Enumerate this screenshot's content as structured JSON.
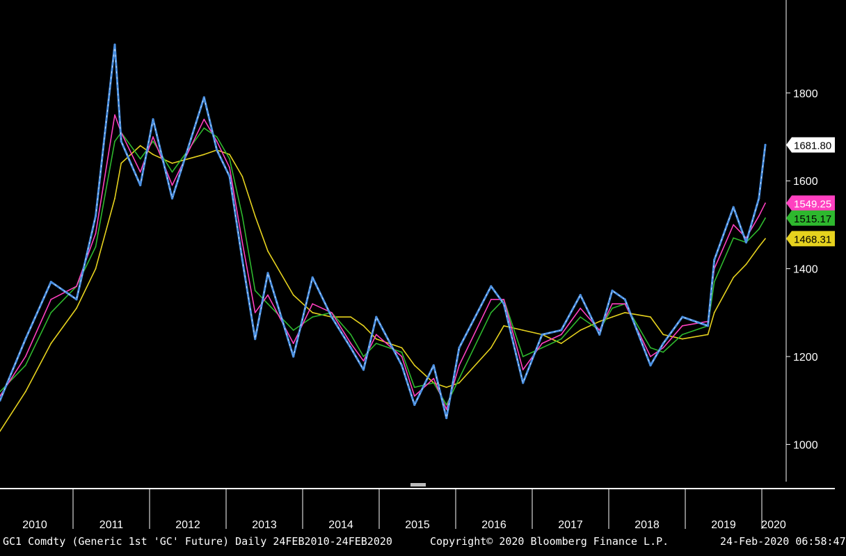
{
  "footer": {
    "left": "GC1 Comdty (Generic 1st 'GC' Future) Daily 24FEB2010-24FEB2020",
    "center": "Copyright© 2020 Bloomberg Finance L.P.",
    "right": "24-Feb-2020 06:58:47"
  },
  "colors": {
    "background": "#000000",
    "price": "#4a90e2",
    "price_highlight": "#ffffff",
    "ma_short": "#ff40c0",
    "ma_mid": "#2eb82e",
    "ma_long": "#e6d21e",
    "axis": "#ffffff"
  },
  "chart_data": {
    "type": "line",
    "x": [
      "2010-02",
      "2010-06",
      "2010-10",
      "2011-02",
      "2011-05",
      "2011-08",
      "2011-09",
      "2011-12",
      "2012-02",
      "2012-05",
      "2012-10",
      "2012-12",
      "2013-02",
      "2013-04",
      "2013-06",
      "2013-08",
      "2013-12",
      "2014-03",
      "2014-06",
      "2014-09",
      "2014-11",
      "2015-01",
      "2015-05",
      "2015-07",
      "2015-10",
      "2015-12",
      "2016-02",
      "2016-07",
      "2016-09",
      "2016-12",
      "2017-03",
      "2017-06",
      "2017-09",
      "2017-12",
      "2018-02",
      "2018-04",
      "2018-08",
      "2018-10",
      "2019-01",
      "2019-05",
      "2019-06",
      "2019-09",
      "2019-11",
      "2020-01",
      "2020-02"
    ],
    "series": [
      {
        "key": "price",
        "values": [
          1100,
          1240,
          1370,
          1330,
          1520,
          1910,
          1690,
          1590,
          1740,
          1560,
          1790,
          1670,
          1610,
          1420,
          1240,
          1390,
          1200,
          1380,
          1290,
          1220,
          1170,
          1290,
          1180,
          1090,
          1180,
          1060,
          1220,
          1360,
          1320,
          1140,
          1250,
          1260,
          1340,
          1250,
          1350,
          1330,
          1180,
          1230,
          1290,
          1270,
          1420,
          1540,
          1460,
          1560,
          1681.8
        ]
      },
      {
        "key": "ma_short",
        "values": [
          1110,
          1200,
          1330,
          1360,
          1480,
          1750,
          1710,
          1620,
          1700,
          1590,
          1740,
          1690,
          1630,
          1460,
          1300,
          1340,
          1230,
          1320,
          1300,
          1230,
          1190,
          1250,
          1200,
          1110,
          1150,
          1080,
          1180,
          1330,
          1330,
          1170,
          1230,
          1250,
          1310,
          1260,
          1320,
          1320,
          1200,
          1220,
          1270,
          1280,
          1400,
          1500,
          1470,
          1520,
          1549.25
        ]
      },
      {
        "key": "ma_mid",
        "values": [
          1120,
          1180,
          1300,
          1360,
          1450,
          1690,
          1710,
          1650,
          1690,
          1620,
          1720,
          1700,
          1650,
          1520,
          1350,
          1320,
          1260,
          1290,
          1300,
          1250,
          1200,
          1230,
          1210,
          1130,
          1140,
          1090,
          1150,
          1300,
          1330,
          1200,
          1220,
          1240,
          1290,
          1260,
          1310,
          1320,
          1220,
          1210,
          1250,
          1270,
          1370,
          1470,
          1460,
          1490,
          1515.17
        ]
      },
      {
        "key": "ma_long",
        "values": [
          1030,
          1120,
          1230,
          1310,
          1400,
          1560,
          1640,
          1680,
          1660,
          1640,
          1660,
          1670,
          1660,
          1610,
          1520,
          1440,
          1340,
          1300,
          1290,
          1290,
          1270,
          1240,
          1220,
          1180,
          1140,
          1130,
          1140,
          1220,
          1270,
          1260,
          1250,
          1230,
          1260,
          1280,
          1290,
          1300,
          1290,
          1250,
          1240,
          1250,
          1300,
          1380,
          1410,
          1450,
          1468.31
        ]
      }
    ],
    "last_values": [
      {
        "key": "price",
        "label": "1681.80"
      },
      {
        "key": "ma_short",
        "label": "1549.25"
      },
      {
        "key": "ma_mid",
        "label": "1515.17"
      },
      {
        "key": "ma_long",
        "label": "1468.31"
      }
    ],
    "y_ticks": [
      "1000",
      "1200",
      "1400",
      "1600",
      "1800"
    ],
    "x_ticks": [
      "2010",
      "2011",
      "2012",
      "2013",
      "2014",
      "2015",
      "2016",
      "2017",
      "2018",
      "2019",
      "2020"
    ],
    "ylim": [
      920,
      1980
    ],
    "xlim": [
      "2010-02",
      "2020-02"
    ],
    "grid": false,
    "legend": "none"
  }
}
